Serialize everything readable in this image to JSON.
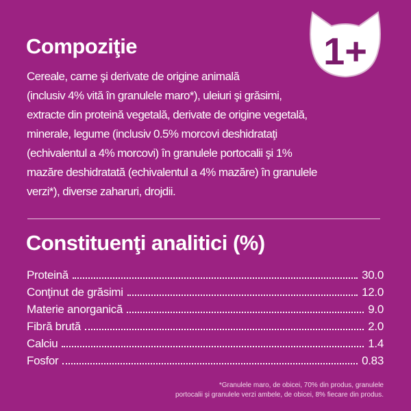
{
  "composition": {
    "title": "Compoziţie",
    "lines": [
      "Cereale, carne şi derivate de origine animală",
      "(inclusiv 4% vită în granulele maro*), uleiuri şi grăsimi,",
      "extracte din proteină vegetală, derivate de origine vegetală,",
      "minerale, legume (inclusiv 0.5% morcovi deshidrataţi",
      "(echivalentul a 4% morcovi) în granulele portocalii şi 1%",
      "mazăre deshidratată (echivalentul a 4% mazăre) în granulele",
      "verzi*), diverse zaharuri, drojdii."
    ]
  },
  "badge": {
    "text": "1+",
    "icon": "cat-head-icon"
  },
  "analytic": {
    "title": "Constituenţi analitici (%)",
    "rows": [
      {
        "label": "Proteină",
        "value": "30.0"
      },
      {
        "label": "Conţinut de grăsimi",
        "value": "12.0"
      },
      {
        "label": "Materie anorganică",
        "value": "9.0"
      },
      {
        "label": "Fibră brută",
        "value": "2.0"
      },
      {
        "label": "Calciu",
        "value": "1.4"
      },
      {
        "label": "Fosfor",
        "value": "0.83"
      }
    ]
  },
  "footnote": [
    "*Granulele maro, de obicei, 70% din produs, granulele",
    "portocalii şi granulele verzi ambele, de obicei, 8% fiecare din produs."
  ],
  "colors": {
    "background": "#9c2282",
    "badge_text": "#7a1a6a"
  }
}
